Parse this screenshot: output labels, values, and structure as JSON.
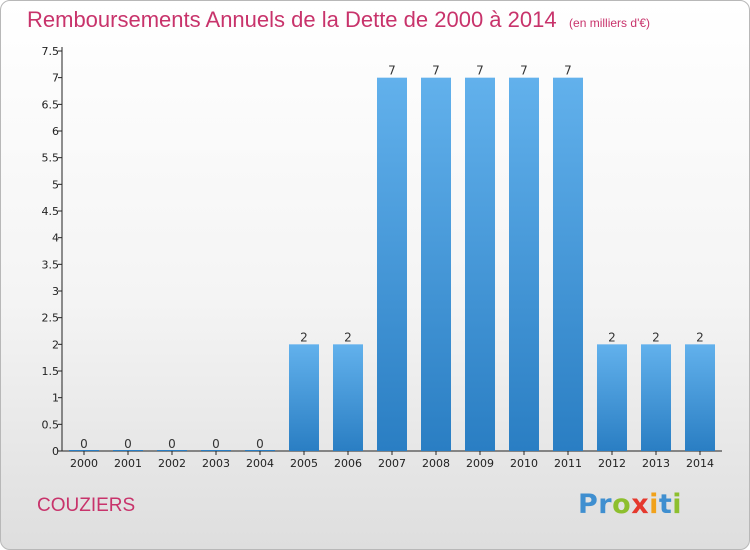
{
  "chart_data": {
    "type": "bar",
    "title": "Remboursements Annuels de la Dette de 2000 à 2014",
    "unit_note": "(en milliers d'€)",
    "categories": [
      "2000",
      "2001",
      "2002",
      "2003",
      "2004",
      "2005",
      "2006",
      "2007",
      "2008",
      "2009",
      "2010",
      "2011",
      "2012",
      "2013",
      "2014"
    ],
    "values": [
      0,
      0,
      0,
      0,
      0,
      2,
      2,
      7,
      7,
      7,
      7,
      7,
      2,
      2,
      2
    ],
    "data_labels": [
      "0",
      "0",
      "0",
      "0",
      "0",
      "2",
      "2",
      "7",
      "7",
      "7",
      "7",
      "7",
      "2",
      "2",
      "2"
    ],
    "ylim": [
      0,
      7.5
    ],
    "yticks": [
      0,
      0.5,
      1,
      1.5,
      2,
      2.5,
      3,
      3.5,
      4,
      4.5,
      5,
      5.5,
      6,
      6.5,
      7,
      7.5
    ],
    "ytick_labels": [
      "0",
      "0.5",
      "1",
      "1.5",
      "2",
      "2.5",
      "3",
      "3.5",
      "4",
      "4.5",
      "5",
      "5.5",
      "6",
      "6.5",
      "7",
      "7.5"
    ],
    "grid": false,
    "bar_color_top": "#62b1ec",
    "bar_color_bottom": "#2a7ec3"
  },
  "footer": {
    "town": "COUZIERS",
    "logo_letters": [
      {
        "ch": "P",
        "color": "#3f8fd0"
      },
      {
        "ch": "r",
        "color": "#3f8fd0"
      },
      {
        "ch": "o",
        "color": "#8dbf2e"
      },
      {
        "ch": "x",
        "color": "#e5392e"
      },
      {
        "ch": "i",
        "color": "#f1a21b"
      },
      {
        "ch": "t",
        "color": "#3f8fd0"
      },
      {
        "ch": "i",
        "color": "#8dbf2e"
      }
    ]
  }
}
